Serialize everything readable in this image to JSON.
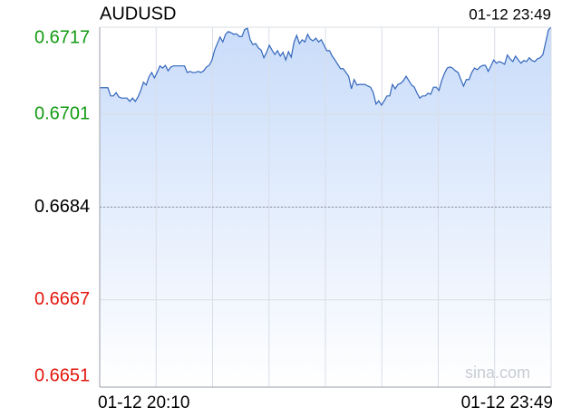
{
  "chart_data": {
    "type": "area",
    "title": "AUDUSD",
    "time": "01-12 23:49",
    "watermark": "sina.com",
    "x_labels": [
      "01-12 20:10",
      "01-12 23:49"
    ],
    "ylim": [
      0.6651,
      0.6717
    ],
    "yticks": [
      0.6717,
      0.6701,
      0.6684,
      0.6667,
      0.6651
    ],
    "ytick_colors": [
      "#139a13",
      "#139a13",
      "#000000",
      "#e3170d",
      "#e3170d"
    ],
    "reference_line": 0.6684,
    "grid": true,
    "color": "#3366bb",
    "fill_color": "#c9dcfa",
    "values": [
      0.67059,
      0.67059,
      0.67059,
      0.67059,
      0.67044,
      0.67044,
      0.6705,
      0.67042,
      0.6704,
      0.6704,
      0.6704,
      0.67034,
      0.6704,
      0.67034,
      0.67042,
      0.67054,
      0.67069,
      0.67064,
      0.67079,
      0.67087,
      0.67077,
      0.67087,
      0.67099,
      0.67095,
      0.671,
      0.6709,
      0.67097,
      0.67099,
      0.67099,
      0.67099,
      0.67099,
      0.67099,
      0.67087,
      0.67089,
      0.67087,
      0.67087,
      0.67089,
      0.67087,
      0.6709,
      0.67097,
      0.671,
      0.67109,
      0.67128,
      0.6714,
      0.67152,
      0.67143,
      0.67157,
      0.67162,
      0.6716,
      0.67157,
      0.67158,
      0.67153,
      0.67153,
      0.67166,
      0.67168,
      0.67147,
      0.67138,
      0.6714,
      0.67132,
      0.67128,
      0.67114,
      0.67124,
      0.67137,
      0.67128,
      0.6712,
      0.67127,
      0.67117,
      0.67124,
      0.6711,
      0.67125,
      0.67115,
      0.67142,
      0.67155,
      0.6714,
      0.67147,
      0.67143,
      0.67157,
      0.67148,
      0.67145,
      0.6715,
      0.67143,
      0.67147,
      0.67137,
      0.67127,
      0.67127,
      0.67117,
      0.6711,
      0.67102,
      0.67094,
      0.67094,
      0.67087,
      0.6708,
      0.67057,
      0.67074,
      0.67064,
      0.67065,
      0.67065,
      0.67065,
      0.67062,
      0.6706,
      0.6705,
      0.67029,
      0.67035,
      0.67027,
      0.67035,
      0.67044,
      0.67044,
      0.67065,
      0.67057,
      0.67065,
      0.67067,
      0.67072,
      0.6708,
      0.67072,
      0.67064,
      0.6706,
      0.67049,
      0.6704,
      0.67044,
      0.67044,
      0.67049,
      0.67047,
      0.6706,
      0.6706,
      0.67054,
      0.67072,
      0.67085,
      0.67095,
      0.67097,
      0.67095,
      0.6709,
      0.67087,
      0.67074,
      0.67062,
      0.67074,
      0.67074,
      0.67087,
      0.67095,
      0.67092,
      0.67097,
      0.671,
      0.671,
      0.67089,
      0.67099,
      0.6711,
      0.67104,
      0.67107,
      0.67105,
      0.67102,
      0.67119,
      0.67112,
      0.67107,
      0.67117,
      0.6711,
      0.67104,
      0.67109,
      0.67107,
      0.67114,
      0.67109,
      0.67107,
      0.67112,
      0.67114,
      0.6712,
      0.67142,
      0.67165,
      0.6717
    ]
  }
}
